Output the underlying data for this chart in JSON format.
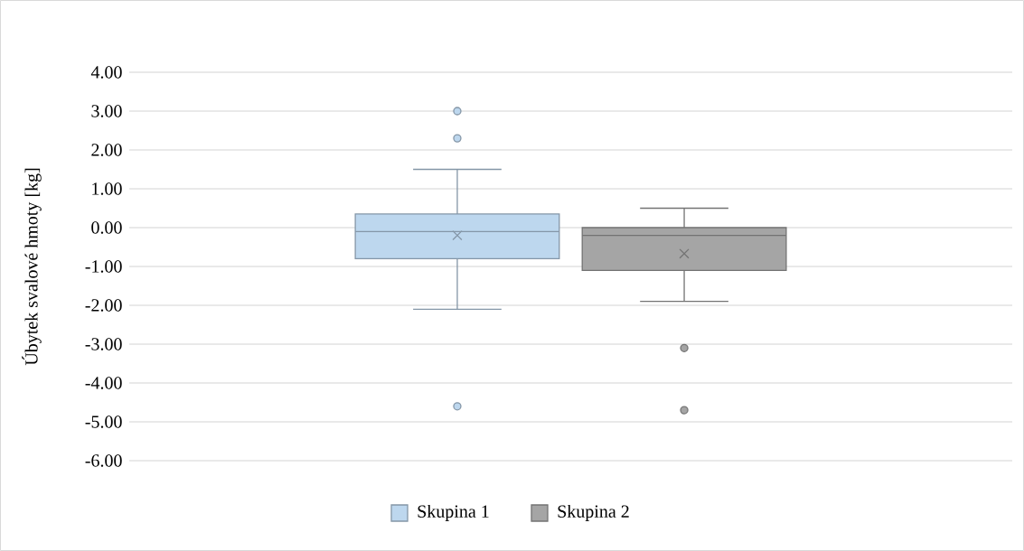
{
  "chart_data": {
    "type": "box",
    "ylabel": "Úbytek svalové hmoty [kg]",
    "categories": [
      null
    ],
    "ylim": [
      -6,
      4
    ],
    "yticks": [
      {
        "value": -6,
        "label": "-6.00"
      },
      {
        "value": -5,
        "label": "-5.00"
      },
      {
        "value": -4,
        "label": "-4.00"
      },
      {
        "value": -3,
        "label": "-3.00"
      },
      {
        "value": -2,
        "label": "-2.00"
      },
      {
        "value": -1,
        "label": "-1.00"
      },
      {
        "value": 0,
        "label": "0.00"
      },
      {
        "value": 1,
        "label": "1.00"
      },
      {
        "value": 2,
        "label": "2.00"
      },
      {
        "value": 3,
        "label": "3.00"
      },
      {
        "value": 4,
        "label": "4.00"
      }
    ],
    "grid": "y",
    "legend": "bottom",
    "marker": "circle",
    "series": [
      {
        "name": "Skupina 1",
        "color": "#bdd7ee",
        "boxes": [
          {
            "low": -2.1,
            "q1": -0.8,
            "median": -0.1,
            "q3": 0.35,
            "high": 1.5,
            "mean": -0.2,
            "outliers": [
              3.0,
              2.3,
              -4.6
            ]
          }
        ]
      },
      {
        "name": "Skupina 2",
        "color": "#a5a5a5",
        "boxes": [
          {
            "low": -1.9,
            "q1": -1.1,
            "median": -0.2,
            "q3": 0.0,
            "high": 0.5,
            "mean": -0.67,
            "outliers": [
              -3.1,
              -4.7
            ]
          }
        ]
      }
    ]
  }
}
